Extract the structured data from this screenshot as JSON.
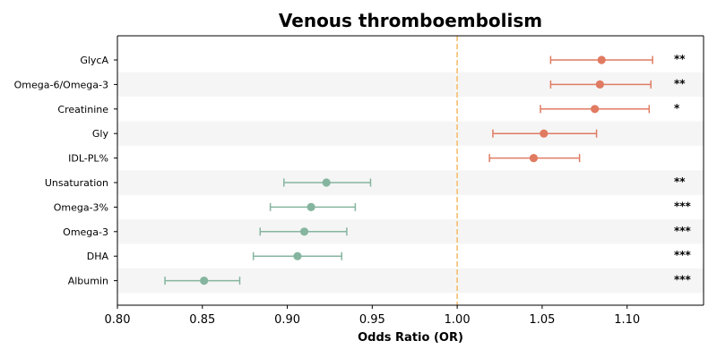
{
  "chart_data": {
    "type": "forest",
    "title": "Venous thromboembolism",
    "xlabel": "Odds Ratio (OR)",
    "ylabel": "",
    "xlim": [
      0.8,
      1.145
    ],
    "xticks": [
      "0.80",
      "0.85",
      "0.90",
      "0.95",
      "1.00",
      "1.05",
      "1.10"
    ],
    "reference_line": 1.0,
    "grid": false,
    "alternating_row_shading": true,
    "colors": {
      "positive": "#e07b62",
      "negative": "#86b59f",
      "reference": "#f5c47e",
      "row_shade": "#f5f5f5"
    },
    "rows": [
      {
        "label": "GlycA",
        "or": 1.085,
        "ci_low": 1.055,
        "ci_high": 1.115,
        "sig": "**",
        "direction": "positive"
      },
      {
        "label": "Omega-6/Omega-3",
        "or": 1.084,
        "ci_low": 1.055,
        "ci_high": 1.114,
        "sig": "**",
        "direction": "positive"
      },
      {
        "label": "Creatinine",
        "or": 1.081,
        "ci_low": 1.049,
        "ci_high": 1.113,
        "sig": "*",
        "direction": "positive"
      },
      {
        "label": "Gly",
        "or": 1.051,
        "ci_low": 1.021,
        "ci_high": 1.082,
        "sig": "",
        "direction": "positive"
      },
      {
        "label": "IDL-PL%",
        "or": 1.045,
        "ci_low": 1.019,
        "ci_high": 1.072,
        "sig": "",
        "direction": "positive"
      },
      {
        "label": "Unsaturation",
        "or": 0.923,
        "ci_low": 0.898,
        "ci_high": 0.949,
        "sig": "**",
        "direction": "negative"
      },
      {
        "label": "Omega-3%",
        "or": 0.914,
        "ci_low": 0.89,
        "ci_high": 0.94,
        "sig": "***",
        "direction": "negative"
      },
      {
        "label": "Omega-3",
        "or": 0.91,
        "ci_low": 0.884,
        "ci_high": 0.935,
        "sig": "***",
        "direction": "negative"
      },
      {
        "label": "DHA",
        "or": 0.906,
        "ci_low": 0.88,
        "ci_high": 0.932,
        "sig": "***",
        "direction": "negative"
      },
      {
        "label": "Albumin",
        "or": 0.851,
        "ci_low": 0.828,
        "ci_high": 0.872,
        "sig": "***",
        "direction": "negative"
      }
    ]
  }
}
